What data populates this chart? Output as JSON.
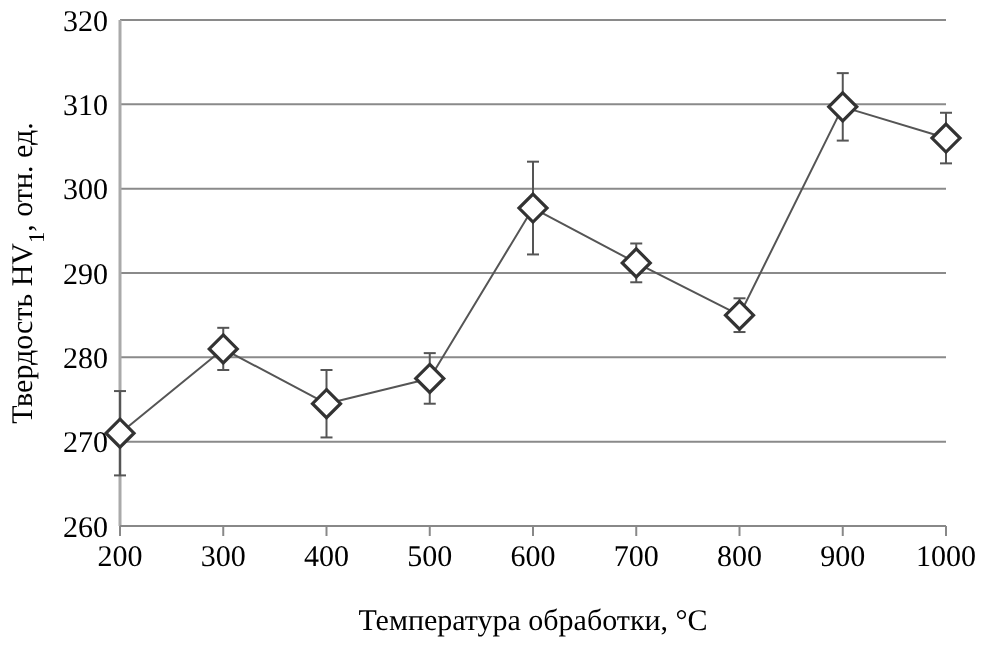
{
  "chart_data": {
    "type": "line",
    "xlabel": "Температура обработки, °С",
    "ylabel": "Твердость HV$_{1}$, отн. ед.",
    "x": [
      200,
      300,
      400,
      500,
      600,
      700,
      800,
      900,
      1000
    ],
    "series": [
      {
        "color": "#555555",
        "values": [
          271,
          281,
          274.5,
          277.5,
          297.7,
          291.2,
          285,
          309.7,
          306
        ],
        "errors": [
          5,
          2.5,
          4,
          3,
          5.5,
          2.3,
          2,
          4,
          3
        ]
      }
    ],
    "xlim": [
      200,
      1000
    ],
    "xticks": [
      200,
      300,
      400,
      500,
      600,
      700,
      800,
      900,
      1000
    ],
    "ylim": [
      260,
      320
    ],
    "yticks": [
      260,
      270,
      280,
      290,
      300,
      310,
      320
    ],
    "grid": "y",
    "marker": "diamond",
    "line_style": "solid"
  }
}
